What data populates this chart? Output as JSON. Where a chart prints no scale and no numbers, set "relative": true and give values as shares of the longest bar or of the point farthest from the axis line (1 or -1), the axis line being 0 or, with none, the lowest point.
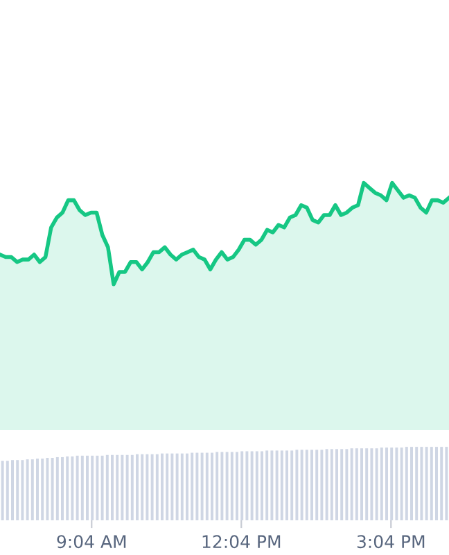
{
  "chart_data": [
    {
      "type": "area",
      "relative": true,
      "color": "#16c784",
      "categories": [
        null,
        null,
        null,
        null,
        null,
        null,
        null,
        null,
        null,
        null,
        null,
        null,
        null,
        null,
        null,
        null,
        null,
        null,
        null,
        null,
        null,
        null,
        null,
        null,
        null,
        null,
        null,
        null,
        null,
        null,
        null,
        null,
        null,
        null,
        null,
        null,
        null,
        null,
        null,
        null,
        null,
        null,
        null,
        null,
        null,
        null,
        null,
        null,
        null,
        null,
        null,
        null,
        null,
        null,
        null,
        null,
        null,
        null,
        null,
        null,
        null,
        null,
        null,
        null,
        null,
        null,
        null,
        null,
        null,
        null,
        null,
        null,
        null,
        null,
        null,
        null,
        null,
        null,
        null,
        null
      ],
      "values": [
        0.71,
        0.7,
        0.7,
        0.68,
        0.69,
        0.69,
        0.71,
        0.68,
        0.7,
        0.82,
        0.86,
        0.88,
        0.93,
        0.93,
        0.89,
        0.87,
        0.88,
        0.88,
        0.79,
        0.74,
        0.59,
        0.64,
        0.64,
        0.68,
        0.68,
        0.65,
        0.68,
        0.72,
        0.72,
        0.74,
        0.71,
        0.69,
        0.71,
        0.72,
        0.73,
        0.7,
        0.69,
        0.65,
        0.69,
        0.72,
        0.69,
        0.7,
        0.73,
        0.77,
        0.77,
        0.75,
        0.77,
        0.81,
        0.8,
        0.83,
        0.82,
        0.86,
        0.87,
        0.91,
        0.9,
        0.85,
        0.84,
        0.87,
        0.87,
        0.91,
        0.87,
        0.88,
        0.9,
        0.91,
        1.0,
        0.98,
        0.96,
        0.95,
        0.93,
        1.0,
        0.97,
        0.94,
        0.95,
        0.94,
        0.9,
        0.88,
        0.93,
        0.93,
        0.92,
        0.94
      ]
    },
    {
      "type": "bar",
      "relative": true,
      "color": "#cfd6e4",
      "xlim": [
        7.23,
        16.23
      ],
      "xticks": [
        {
          "value": 9.067,
          "label": "9:04 AM"
        },
        {
          "value": 12.067,
          "label": "12:04 PM"
        },
        {
          "value": 15.067,
          "label": "3:04 PM"
        }
      ],
      "x": [
        7.28,
        7.38,
        7.48,
        7.58,
        7.68,
        7.78,
        7.88,
        7.98,
        8.08,
        8.18,
        8.28,
        8.38,
        8.48,
        8.58,
        8.68,
        8.78,
        8.88,
        8.98,
        9.08,
        9.18,
        9.28,
        9.38,
        9.48,
        9.58,
        9.68,
        9.78,
        9.88,
        9.98,
        10.08,
        10.18,
        10.28,
        10.38,
        10.48,
        10.58,
        10.68,
        10.78,
        10.88,
        10.98,
        11.08,
        11.18,
        11.28,
        11.38,
        11.48,
        11.58,
        11.68,
        11.78,
        11.88,
        11.98,
        12.08,
        12.18,
        12.28,
        12.38,
        12.48,
        12.58,
        12.68,
        12.78,
        12.88,
        12.98,
        13.08,
        13.18,
        13.28,
        13.38,
        13.48,
        13.58,
        13.68,
        13.78,
        13.88,
        13.98,
        14.08,
        14.18,
        14.28,
        14.38,
        14.48,
        14.58,
        14.68,
        14.78,
        14.88,
        14.98,
        15.08,
        15.18,
        15.28,
        15.38,
        15.48,
        15.58,
        15.68,
        15.78,
        15.88,
        15.98,
        16.08,
        16.18
      ],
      "values": [
        0.81,
        0.81,
        0.82,
        0.82,
        0.82,
        0.83,
        0.83,
        0.84,
        0.84,
        0.85,
        0.85,
        0.86,
        0.86,
        0.87,
        0.87,
        0.88,
        0.88,
        0.88,
        0.88,
        0.88,
        0.88,
        0.89,
        0.89,
        0.89,
        0.89,
        0.89,
        0.89,
        0.9,
        0.9,
        0.9,
        0.9,
        0.9,
        0.91,
        0.91,
        0.91,
        0.91,
        0.91,
        0.91,
        0.92,
        0.92,
        0.92,
        0.92,
        0.92,
        0.93,
        0.93,
        0.93,
        0.93,
        0.93,
        0.94,
        0.94,
        0.94,
        0.94,
        0.94,
        0.95,
        0.95,
        0.95,
        0.95,
        0.95,
        0.95,
        0.96,
        0.96,
        0.96,
        0.96,
        0.96,
        0.96,
        0.97,
        0.97,
        0.97,
        0.97,
        0.97,
        0.98,
        0.98,
        0.98,
        0.98,
        0.98,
        0.98,
        0.99,
        0.99,
        0.99,
        0.99,
        0.99,
        1.0,
        1.0,
        1.0,
        1.0,
        1.0,
        1.0,
        1.0,
        1.0,
        1.0
      ]
    }
  ]
}
